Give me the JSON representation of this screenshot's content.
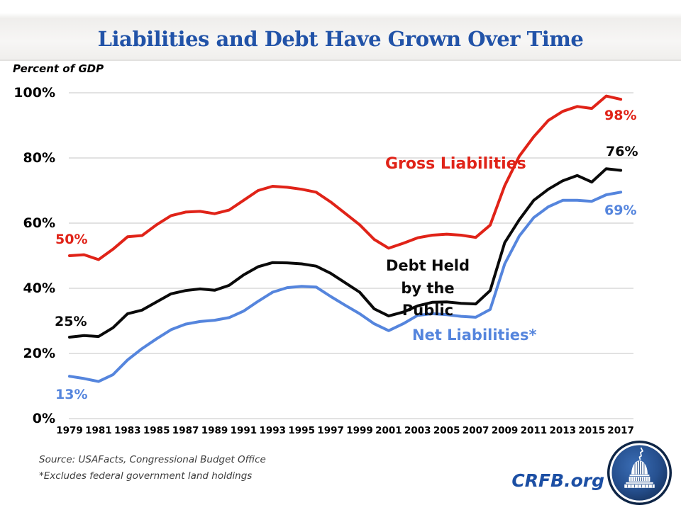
{
  "header": {
    "title": "Liabilities and Debt Have Grown Over Time"
  },
  "footer": {
    "source": "Source: USAFacts, Congressional Budget Office",
    "footnote": "*Excludes federal government land holdings",
    "brand": "CRFB.org"
  },
  "logo": {
    "name": "crfb-capitol-logo"
  },
  "colors": {
    "title_blue": "#2253A8",
    "brand_blue": "#1C4FA4",
    "gross_red": "#E02318",
    "debt_black": "#0A0A0A",
    "net_blue": "#5585DD",
    "gridline": "#D9D9D9"
  },
  "chart_data": {
    "type": "line",
    "title": "Liabilities and Debt Have Grown Over Time",
    "units_label": "Percent of GDP",
    "xlabel": "",
    "ylabel": "Percent of GDP",
    "ylim": [
      0,
      100
    ],
    "grid": true,
    "gridline_color": "#D9D9D9",
    "legend_position": "inline-annotations",
    "y_ticks": [
      {
        "label": "100%",
        "value": 100
      },
      {
        "label": "80%",
        "value": 80
      },
      {
        "label": "60%",
        "value": 60
      },
      {
        "label": "40%",
        "value": 40
      },
      {
        "label": "20%",
        "value": 20
      },
      {
        "label": "0%",
        "value": 0
      }
    ],
    "x": [
      1979,
      1980,
      1981,
      1982,
      1983,
      1984,
      1985,
      1986,
      1987,
      1988,
      1989,
      1990,
      1991,
      1992,
      1993,
      1994,
      1995,
      1996,
      1997,
      1998,
      1999,
      2000,
      2001,
      2002,
      2003,
      2004,
      2005,
      2006,
      2007,
      2008,
      2009,
      2010,
      2011,
      2012,
      2013,
      2014,
      2015,
      2016,
      2017
    ],
    "x_tick_labels": [
      "1979",
      "1981",
      "1983",
      "1985",
      "1987",
      "1989",
      "1991",
      "1993",
      "1995",
      "1997",
      "1999",
      "2001",
      "2003",
      "2005",
      "2007",
      "2009",
      "2011",
      "2013",
      "2015",
      "2017"
    ],
    "series": [
      {
        "name": "Gross Liabilities",
        "color": "#E02318",
        "start_label": "50%",
        "end_label": "98%",
        "values": [
          50.0,
          50.3,
          48.8,
          52.0,
          55.8,
          56.2,
          59.5,
          62.3,
          63.4,
          63.6,
          62.9,
          64.0,
          67.0,
          70.0,
          71.3,
          71.0,
          70.4,
          69.5,
          66.5,
          63.0,
          59.5,
          55.0,
          52.3,
          53.8,
          55.5,
          56.3,
          56.6,
          56.3,
          55.6,
          59.4,
          71.5,
          80.5,
          86.5,
          91.5,
          94.3,
          95.8,
          95.2,
          99.0,
          98.0
        ]
      },
      {
        "name": "Debt Held by the Public",
        "color": "#0A0A0A",
        "start_label": "25%",
        "end_label": "76%",
        "values": [
          25.0,
          25.5,
          25.2,
          27.9,
          32.2,
          33.3,
          35.8,
          38.3,
          39.3,
          39.8,
          39.4,
          40.9,
          44.1,
          46.6,
          47.9,
          47.8,
          47.5,
          46.8,
          44.6,
          41.7,
          38.8,
          33.7,
          31.5,
          32.7,
          34.6,
          35.7,
          35.8,
          35.4,
          35.2,
          39.3,
          54.0,
          61.0,
          67.0,
          70.4,
          73.0,
          74.6,
          72.6,
          76.7,
          76.2
        ]
      },
      {
        "name": "Net Liabilities*",
        "color": "#5585DD",
        "start_label": "13%",
        "end_label": "69%",
        "values": [
          13.0,
          12.3,
          11.4,
          13.5,
          18.0,
          21.5,
          24.5,
          27.3,
          29.0,
          29.8,
          30.2,
          31.0,
          33.0,
          36.0,
          38.8,
          40.2,
          40.6,
          40.4,
          37.5,
          34.8,
          32.2,
          29.1,
          27.0,
          29.1,
          31.7,
          32.2,
          31.9,
          31.4,
          31.1,
          33.5,
          47.5,
          56.0,
          61.7,
          65.0,
          67.0,
          67.0,
          66.7,
          68.7,
          69.5
        ]
      }
    ]
  }
}
